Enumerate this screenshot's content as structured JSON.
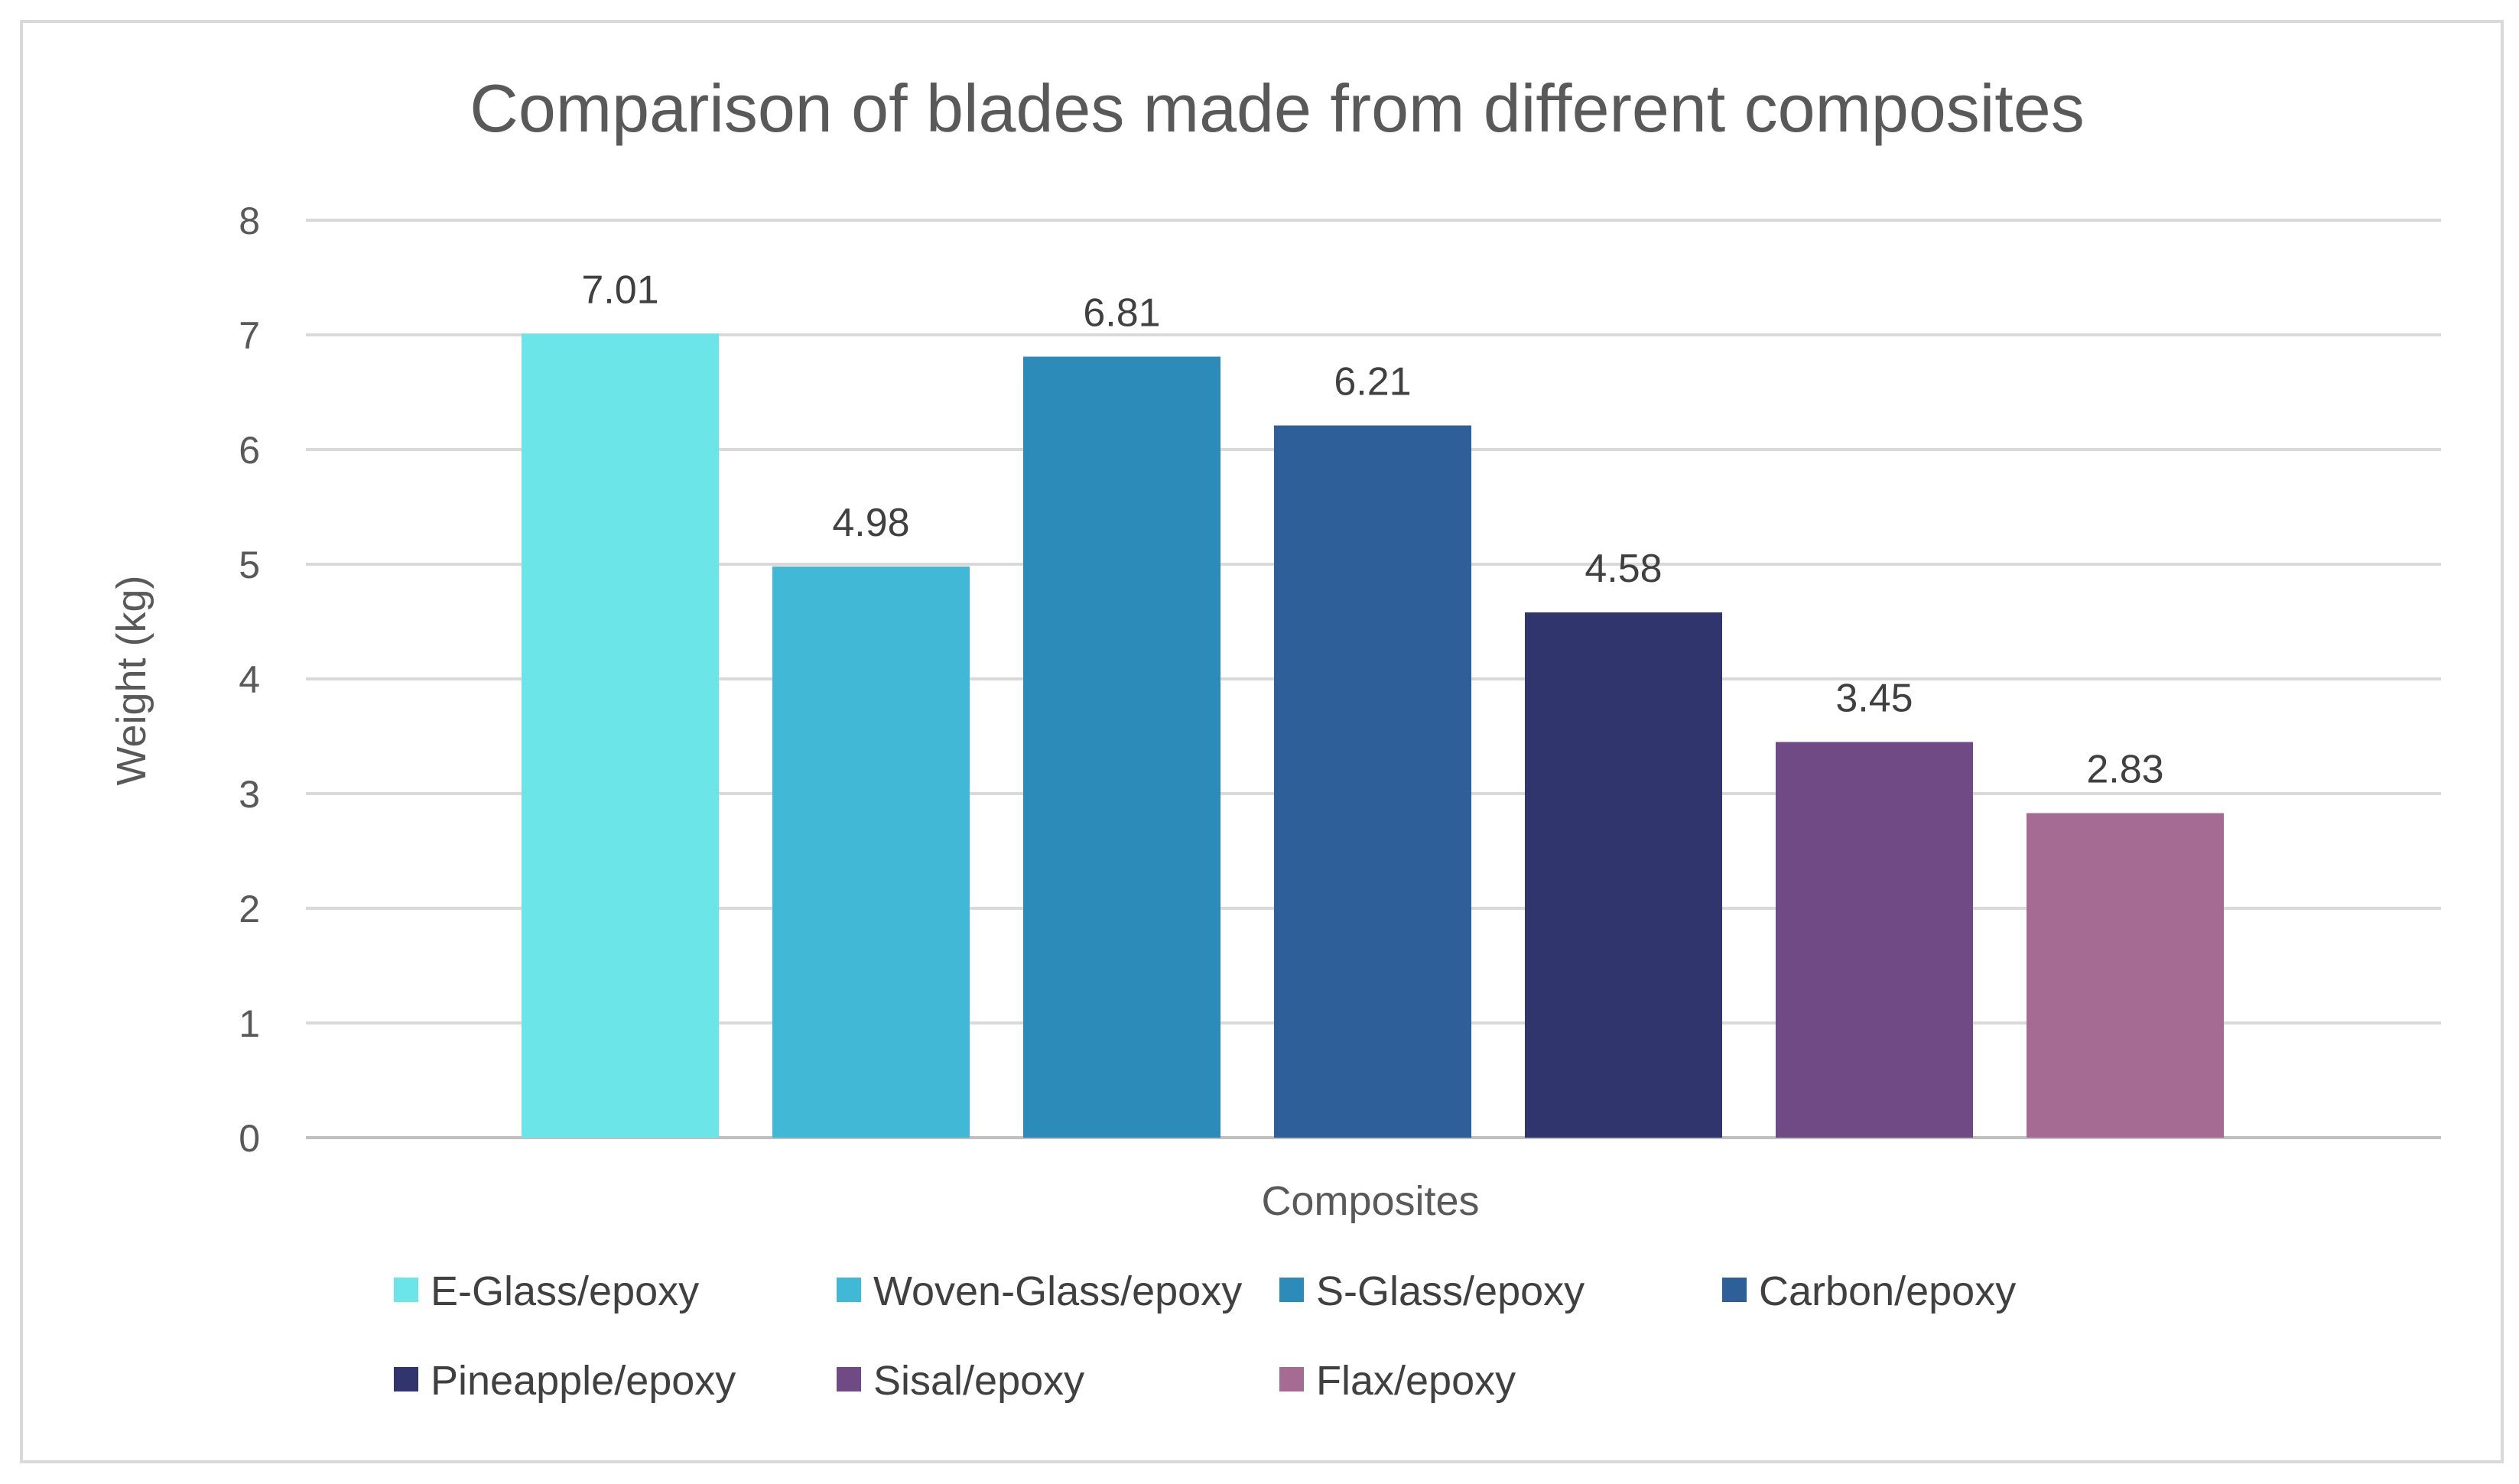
{
  "chart_data": {
    "type": "bar",
    "title": "Comparison of blades made from different composites",
    "xlabel": "Composites",
    "ylabel": "Weight (kg)",
    "ylim": [
      0,
      8
    ],
    "yticks": [
      "0",
      "1",
      "2",
      "3",
      "4",
      "5",
      "6",
      "7",
      "8"
    ],
    "grid": true,
    "legend_position": "bottom",
    "categories": [
      "E-Glass/epoxy",
      "Woven-Glass/epoxy",
      "S-Glass/epoxy",
      "Carbon/epoxy",
      "Pineapple/epoxy",
      "Sisal/epoxy",
      "Flax/epoxy"
    ],
    "values": [
      7.01,
      4.98,
      6.81,
      6.21,
      4.58,
      3.45,
      2.83
    ],
    "value_labels": [
      "7.01",
      "4.98",
      "6.81",
      "6.21",
      "4.58",
      "3.45",
      "2.83"
    ],
    "colors": [
      "#6ce5e8",
      "#41b8d5",
      "#2d8bba",
      "#2f5f98",
      "#31356e",
      "#704a85",
      "#a66b93"
    ]
  }
}
